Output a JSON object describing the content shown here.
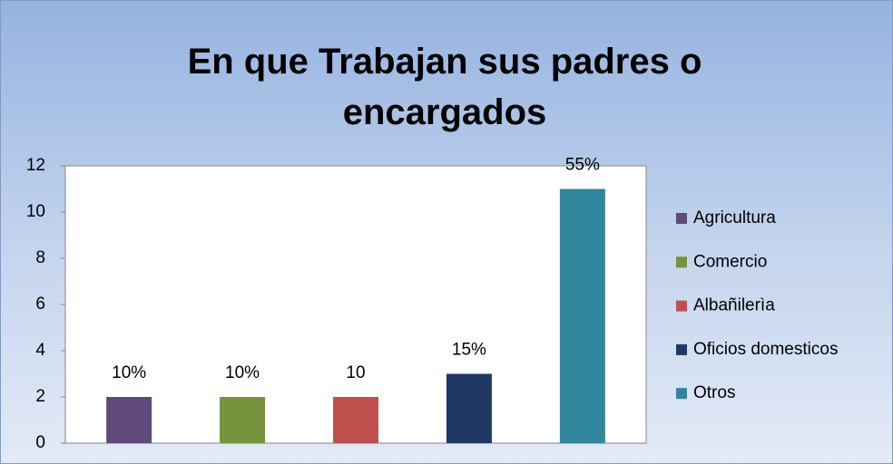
{
  "chart_data": {
    "type": "bar",
    "title": "En que Trabajan sus padres o encargados",
    "categories": [
      null
    ],
    "series": [
      {
        "name": "Agricultura",
        "color": "#604a7b",
        "values": [
          2
        ],
        "value_labels": [
          "10%"
        ]
      },
      {
        "name": "Comercio",
        "color": "#77933c",
        "values": [
          2
        ],
        "value_labels": [
          "10%"
        ]
      },
      {
        "name": "Albañilerìa",
        "color": "#c0504d",
        "values": [
          2
        ],
        "value_labels": [
          "10"
        ]
      },
      {
        "name": "Oficios domesticos",
        "color": "#1f3864",
        "values": [
          3
        ],
        "value_labels": [
          "15%"
        ]
      },
      {
        "name": "Otros",
        "color": "#31859c",
        "values": [
          11
        ],
        "value_labels": [
          "55%"
        ]
      }
    ],
    "ylim": [
      0,
      12
    ],
    "yticks": [
      0,
      2,
      4,
      6,
      8,
      10,
      12
    ],
    "grid": false,
    "legend": "right"
  }
}
